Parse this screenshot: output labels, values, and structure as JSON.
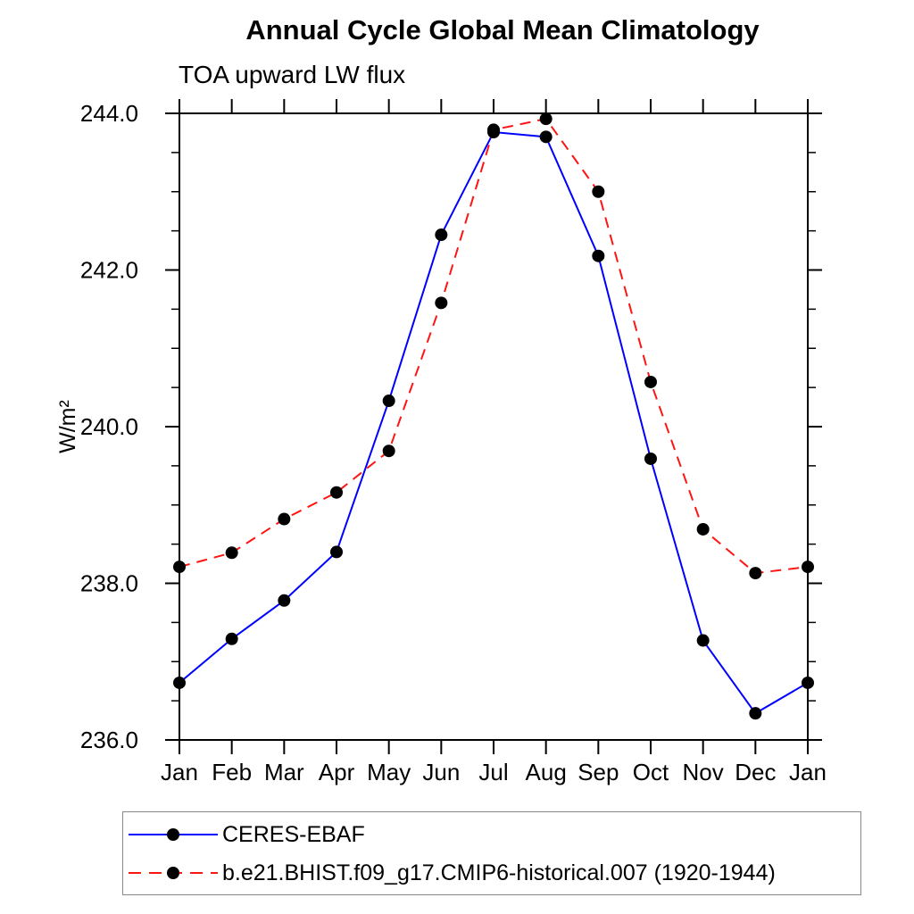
{
  "chart_data": {
    "type": "line",
    "title": "Annual Cycle Global Mean Climatology",
    "subtitle": "TOA upward LW flux",
    "xlabel": "",
    "ylabel": "W/m²",
    "categories": [
      "Jan",
      "Feb",
      "Mar",
      "Apr",
      "May",
      "Jun",
      "Jul",
      "Aug",
      "Sep",
      "Oct",
      "Nov",
      "Dec",
      "Jan"
    ],
    "ylim": [
      236.0,
      244.0
    ],
    "y_major_ticks": [
      236.0,
      238.0,
      240.0,
      242.0,
      244.0
    ],
    "y_tick_labels": [
      "236.0",
      "238.0",
      "240.0",
      "242.0",
      "244.0"
    ],
    "y_minor_step": 0.5,
    "grid": false,
    "tick_direction": "out",
    "legend_position": "bottom-left",
    "marker_color": "#000000",
    "series": [
      {
        "name": "CERES-EBAF",
        "color": "#0000ff",
        "line_style": "solid",
        "marker": "filled-circle",
        "values": [
          236.73,
          237.29,
          237.78,
          238.4,
          240.33,
          242.45,
          243.76,
          243.7,
          242.18,
          239.59,
          237.27,
          236.34,
          236.73
        ]
      },
      {
        "name": "b.e21.BHIST.f09_g17.CMIP6-historical.007 (1920-1944)",
        "color": "#ff1414",
        "line_style": "dashed",
        "marker": "filled-circle",
        "values": [
          238.21,
          238.39,
          238.82,
          239.16,
          239.69,
          241.58,
          243.79,
          243.93,
          243.0,
          240.57,
          238.69,
          238.13,
          238.21
        ]
      }
    ]
  }
}
